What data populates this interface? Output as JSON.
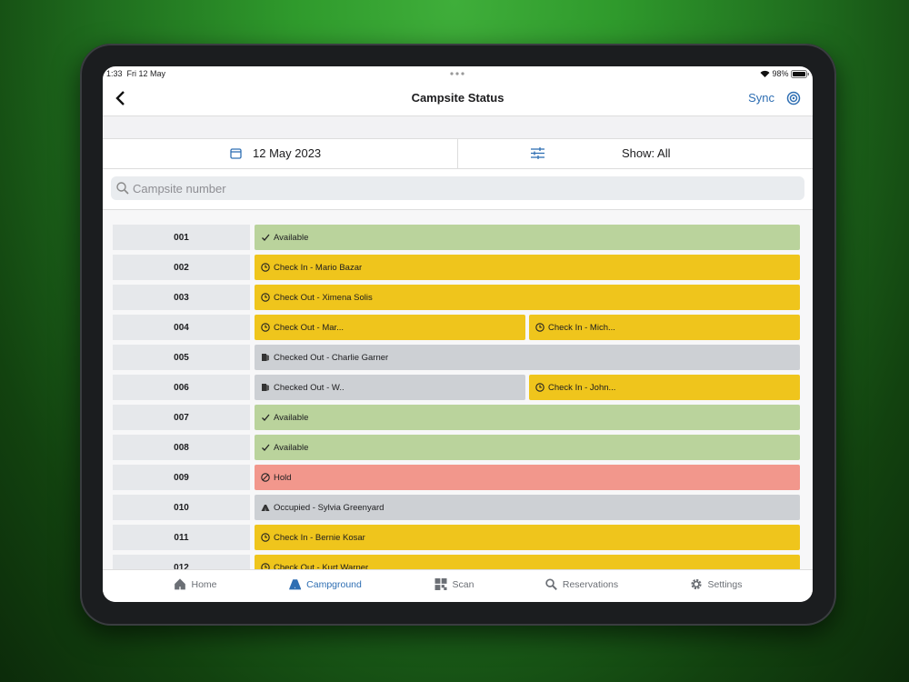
{
  "status_bar": {
    "time": "1:33",
    "date": "Fri 12 May",
    "battery": "98%"
  },
  "nav": {
    "title": "Campsite Status",
    "action": "Sync"
  },
  "filters": {
    "date": "12 May 2023",
    "show": "Show: All"
  },
  "search": {
    "placeholder": "Campsite number"
  },
  "sites": [
    {
      "number": "001",
      "bookings": [
        {
          "text": "Available",
          "icon": "check",
          "color": "#bad39c"
        }
      ]
    },
    {
      "number": "002",
      "bookings": [
        {
          "text": "Check In - Mario Bazar",
          "icon": "clock",
          "color": "#efc51c"
        }
      ]
    },
    {
      "number": "003",
      "bookings": [
        {
          "text": "Check Out - Ximena Solis",
          "icon": "clock",
          "color": "#efc51c"
        }
      ]
    },
    {
      "number": "004",
      "bookings": [
        {
          "text": "Check Out - Mar...",
          "icon": "clock",
          "color": "#efc51c"
        },
        {
          "text": "Check In - Mich...",
          "icon": "clock",
          "color": "#efc51c"
        }
      ]
    },
    {
      "number": "005",
      "bookings": [
        {
          "text": "Checked Out - Charlie Garner",
          "icon": "door",
          "color": "#cdd0d4"
        }
      ]
    },
    {
      "number": "006",
      "bookings": [
        {
          "text": "Checked Out - W..",
          "icon": "door",
          "color": "#cdd0d4"
        },
        {
          "text": "Check In - John...",
          "icon": "clock",
          "color": "#efc51c"
        }
      ]
    },
    {
      "number": "007",
      "bookings": [
        {
          "text": "Available",
          "icon": "check",
          "color": "#bad39c"
        }
      ]
    },
    {
      "number": "008",
      "bookings": [
        {
          "text": "Available",
          "icon": "check",
          "color": "#bad39c"
        }
      ]
    },
    {
      "number": "009",
      "bookings": [
        {
          "text": "Hold",
          "icon": "hold",
          "color": "#f2978c"
        }
      ]
    },
    {
      "number": "010",
      "bookings": [
        {
          "text": "Occupied - Sylvia Greenyard",
          "icon": "tent",
          "color": "#cdd0d4"
        }
      ]
    },
    {
      "number": "011",
      "bookings": [
        {
          "text": "Check In - Bernie Kosar",
          "icon": "clock",
          "color": "#efc51c"
        }
      ]
    },
    {
      "number": "012",
      "bookings": [
        {
          "text": "Check Out - Kurt Warner",
          "icon": "clock",
          "color": "#efc51c"
        }
      ]
    }
  ],
  "tabs": [
    {
      "label": "Home",
      "color": "#6b6f75"
    },
    {
      "label": "Campground",
      "color": "#2f6fb3"
    },
    {
      "label": "Scan",
      "color": "#6b6f75"
    },
    {
      "label": "Reservations",
      "color": "#6b6f75"
    },
    {
      "label": "Settings",
      "color": "#6b6f75"
    }
  ]
}
